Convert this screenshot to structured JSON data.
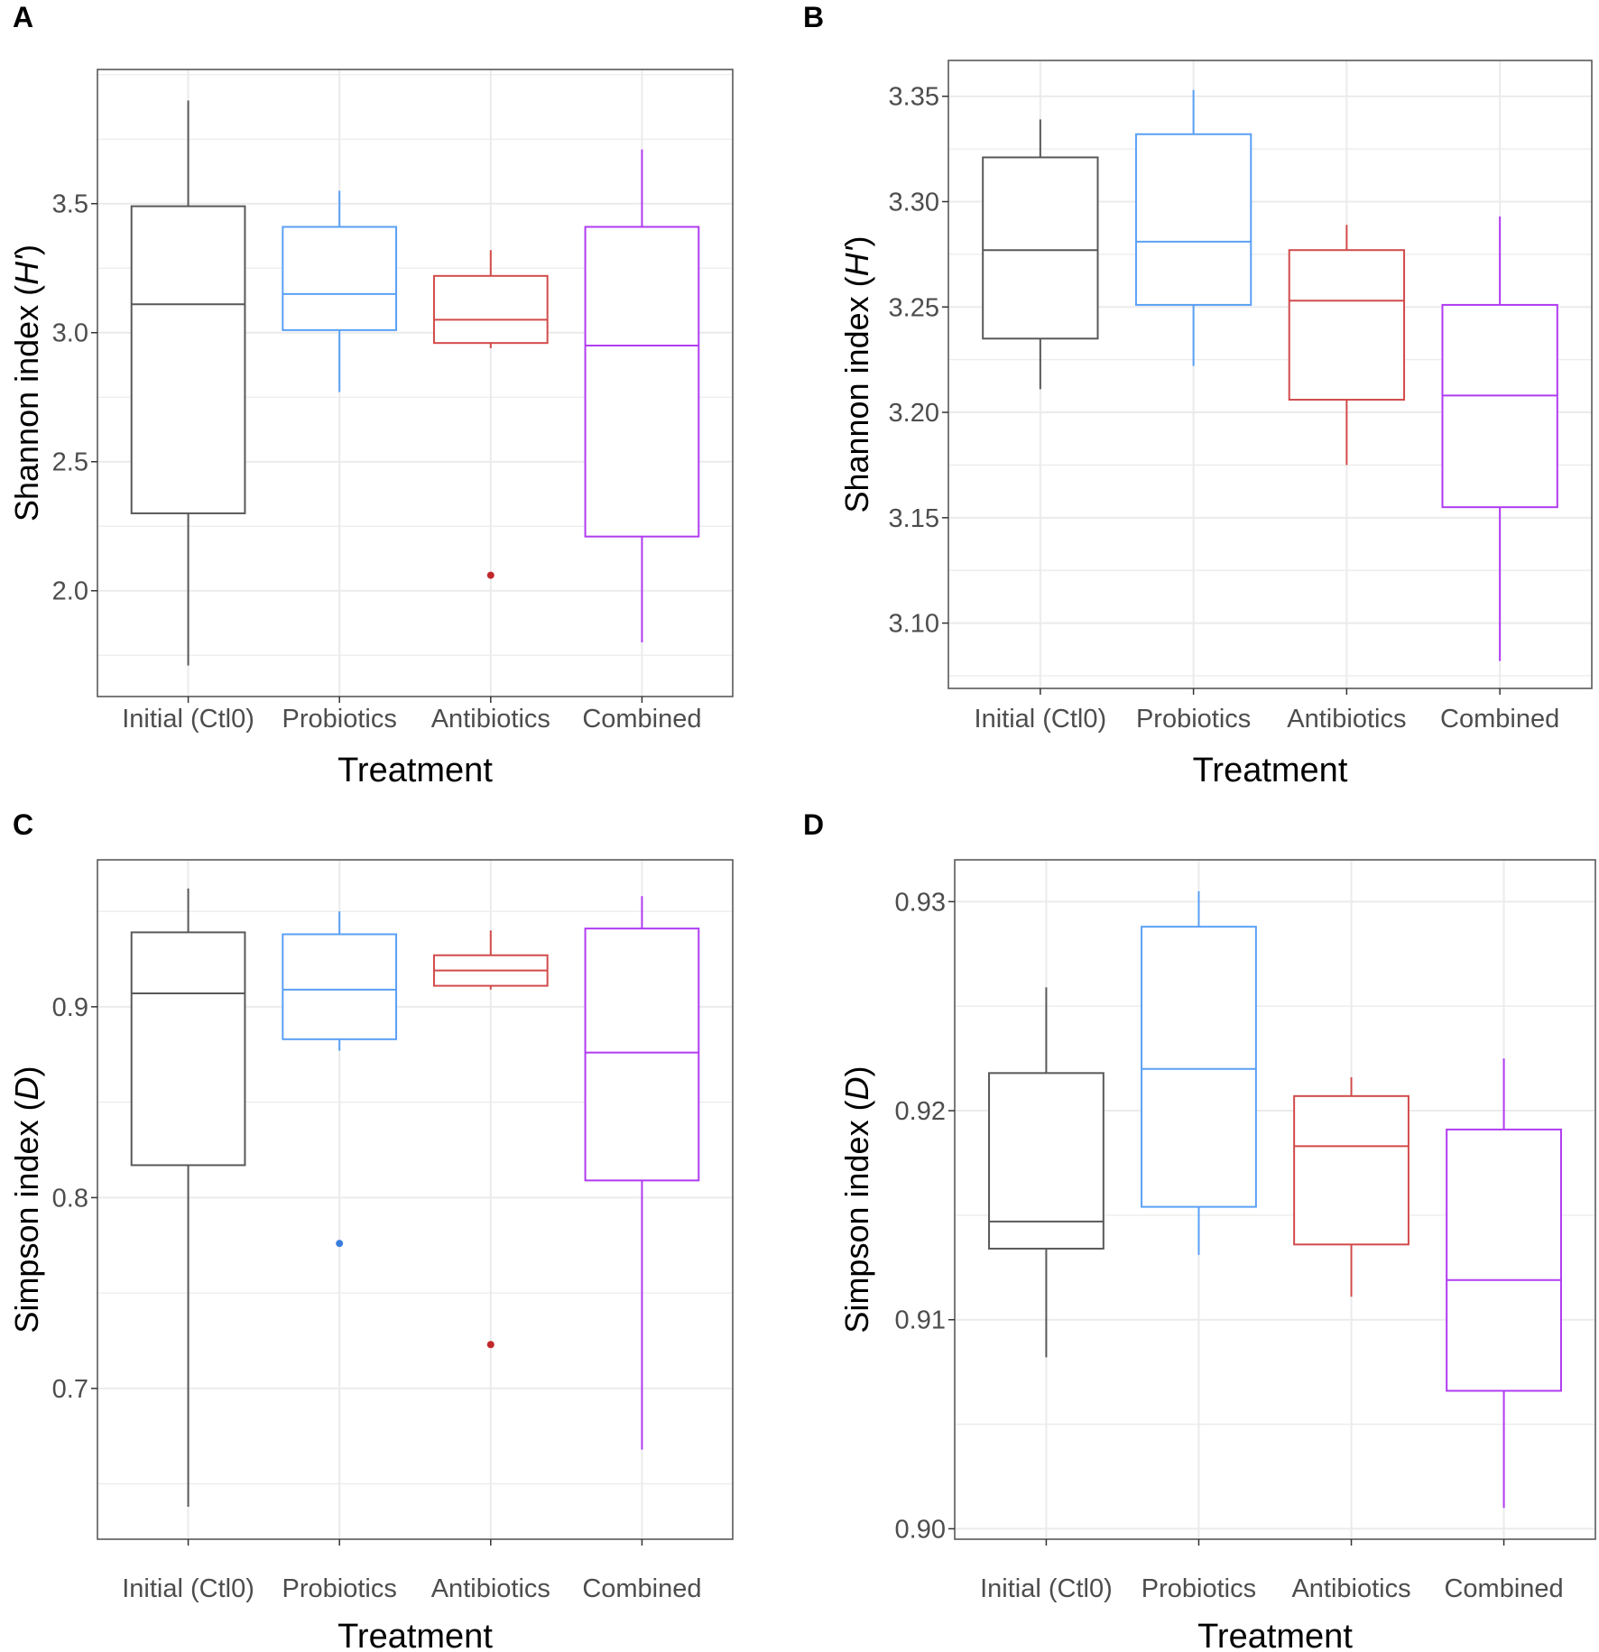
{
  "chart_data": [
    {
      "panel": "A",
      "type": "boxplot",
      "xlabel": "Treatment",
      "ylabel_main": "Shannon index (",
      "ylabel_italic": "H'",
      "ylabel_end": ")",
      "categories": [
        "Initial (Ctl0)",
        "Probiotics",
        "Antibiotics",
        "Combined"
      ],
      "colors": [
        "#595959",
        "#5aa0f5",
        "#d24b4b",
        "#b03cf2"
      ],
      "outlier_colors": [
        "#595959",
        "#3b7ddd",
        "#c0282b",
        "#b03cf2"
      ],
      "ylim": [
        1.59,
        4.02
      ],
      "yticks": [
        2.0,
        2.5,
        3.0,
        3.5
      ],
      "ytick_labels": [
        "2.0",
        "2.5",
        "3.0",
        "3.5"
      ],
      "ydecimals": 1,
      "boxes": [
        {
          "min": 1.71,
          "q1": 2.3,
          "median": 3.11,
          "q3": 3.49,
          "max": 3.9,
          "outliers": []
        },
        {
          "min": 2.77,
          "q1": 3.01,
          "median": 3.15,
          "q3": 3.41,
          "max": 3.55,
          "outliers": []
        },
        {
          "min": 2.94,
          "q1": 2.96,
          "median": 3.05,
          "q3": 3.22,
          "max": 3.32,
          "outliers": [
            2.06
          ]
        },
        {
          "min": 1.8,
          "q1": 2.21,
          "median": 2.95,
          "q3": 3.41,
          "max": 3.71,
          "outliers": []
        }
      ]
    },
    {
      "panel": "B",
      "type": "boxplot",
      "xlabel": "Treatment",
      "ylabel_main": "Shannon index (",
      "ylabel_italic": "H'",
      "ylabel_end": ")",
      "categories": [
        "Initial (Ctl0)",
        "Probiotics",
        "Antibiotics",
        "Combined"
      ],
      "colors": [
        "#595959",
        "#5aa0f5",
        "#d24b4b",
        "#b03cf2"
      ],
      "outlier_colors": [
        "#595959",
        "#3b7ddd",
        "#c0282b",
        "#b03cf2"
      ],
      "ylim": [
        3.069,
        3.367
      ],
      "yticks": [
        3.1,
        3.15,
        3.2,
        3.25,
        3.3,
        3.35
      ],
      "ytick_labels": [
        "3.10",
        "3.15",
        "3.20",
        "3.25",
        "3.30",
        "3.35"
      ],
      "ydecimals": 2,
      "boxes": [
        {
          "min": 3.211,
          "q1": 3.235,
          "median": 3.277,
          "q3": 3.321,
          "max": 3.339,
          "outliers": []
        },
        {
          "min": 3.222,
          "q1": 3.251,
          "median": 3.281,
          "q3": 3.332,
          "max": 3.353,
          "outliers": []
        },
        {
          "min": 3.175,
          "q1": 3.206,
          "median": 3.253,
          "q3": 3.277,
          "max": 3.289,
          "outliers": []
        },
        {
          "min": 3.082,
          "q1": 3.155,
          "median": 3.208,
          "q3": 3.251,
          "max": 3.293,
          "outliers": []
        }
      ]
    },
    {
      "panel": "C",
      "type": "boxplot",
      "xlabel": "Treatment",
      "ylabel_main": "Simpson index (",
      "ylabel_italic": "D",
      "ylabel_end": ")",
      "categories": [
        "Initial (Ctl0)",
        "Probiotics",
        "Antibiotics",
        "Combined"
      ],
      "colors": [
        "#595959",
        "#5aa0f5",
        "#d24b4b",
        "#b03cf2"
      ],
      "outlier_colors": [
        "#595959",
        "#3b7ddd",
        "#c0282b",
        "#b03cf2"
      ],
      "ylim": [
        0.621,
        0.977
      ],
      "yticks": [
        0.7,
        0.8,
        0.9
      ],
      "ytick_labels": [
        "0.7",
        "0.8",
        "0.9"
      ],
      "ydecimals": 1,
      "boxes": [
        {
          "min": 0.638,
          "q1": 0.817,
          "median": 0.907,
          "q3": 0.939,
          "max": 0.962,
          "outliers": []
        },
        {
          "min": 0.877,
          "q1": 0.883,
          "median": 0.909,
          "q3": 0.938,
          "max": 0.95,
          "outliers": [
            0.776
          ]
        },
        {
          "min": 0.909,
          "q1": 0.911,
          "median": 0.919,
          "q3": 0.927,
          "max": 0.94,
          "outliers": [
            0.723
          ]
        },
        {
          "min": 0.668,
          "q1": 0.809,
          "median": 0.876,
          "q3": 0.941,
          "max": 0.958,
          "outliers": []
        }
      ]
    },
    {
      "panel": "D",
      "type": "boxplot",
      "xlabel": "Treatment",
      "ylabel_main": "Simpson index (",
      "ylabel_italic": "D",
      "ylabel_end": ")",
      "categories": [
        "Initial (Ctl0)",
        "Probiotics",
        "Antibiotics",
        "Combined"
      ],
      "colors": [
        "#595959",
        "#5aa0f5",
        "#d24b4b",
        "#b03cf2"
      ],
      "outlier_colors": [
        "#595959",
        "#3b7ddd",
        "#c0282b",
        "#b03cf2"
      ],
      "ylim": [
        0.8995,
        0.932
      ],
      "yticks": [
        0.9,
        0.91,
        0.92,
        0.93
      ],
      "ytick_labels": [
        "0.90",
        "0.91",
        "0.92",
        "0.93"
      ],
      "ydecimals": 2,
      "boxes": [
        {
          "min": 0.9082,
          "q1": 0.9134,
          "median": 0.9147,
          "q3": 0.9218,
          "max": 0.9259,
          "outliers": []
        },
        {
          "min": 0.9131,
          "q1": 0.9154,
          "median": 0.922,
          "q3": 0.9288,
          "max": 0.9305,
          "outliers": []
        },
        {
          "min": 0.9111,
          "q1": 0.9136,
          "median": 0.9183,
          "q3": 0.9207,
          "max": 0.9216,
          "outliers": []
        },
        {
          "min": 0.901,
          "q1": 0.9066,
          "median": 0.9119,
          "q3": 0.9191,
          "max": 0.9225,
          "outliers": []
        }
      ]
    }
  ]
}
